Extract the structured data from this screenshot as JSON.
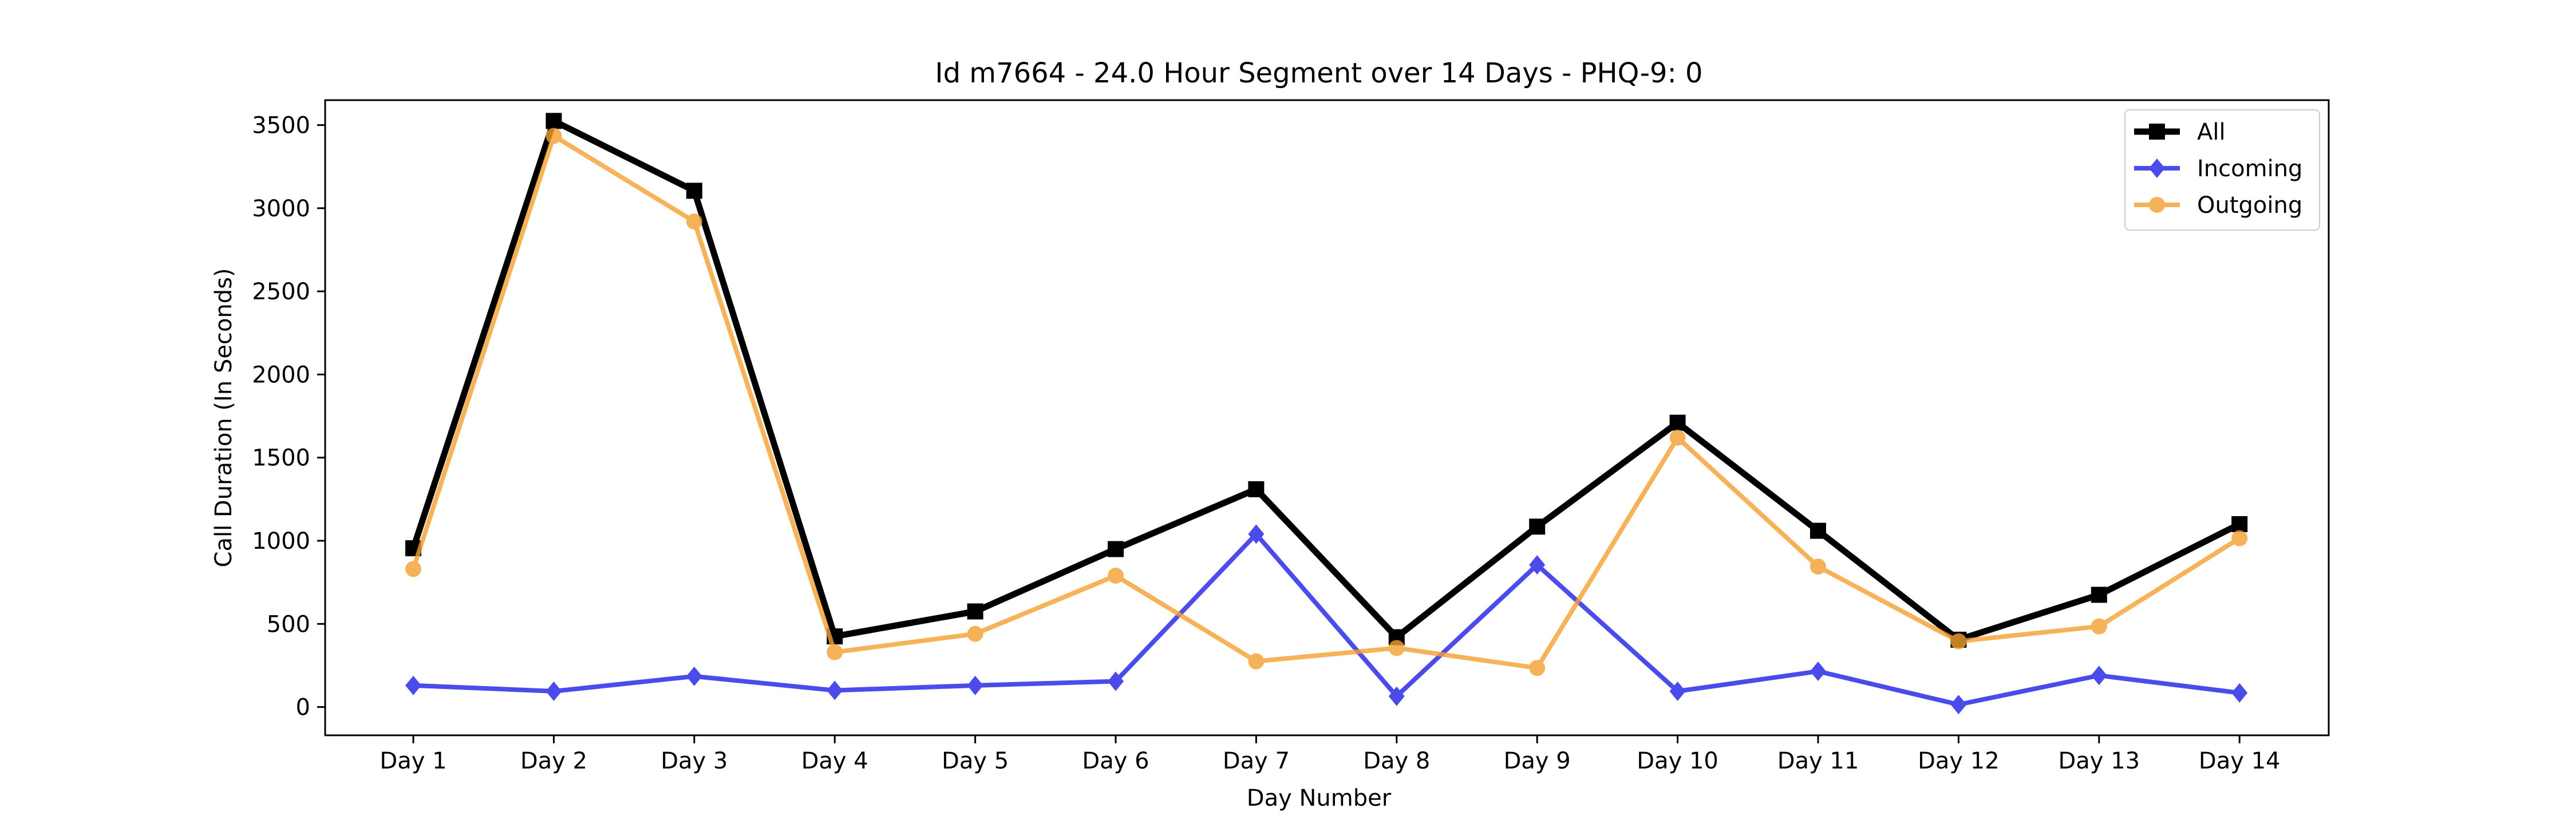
{
  "chart_data": {
    "type": "line",
    "title": "Id m7664 - 24.0 Hour Segment over 14 Days - PHQ-9: 0",
    "xlabel": "Day Number",
    "ylabel": "Call Duration (In Seconds)",
    "categories": [
      "Day 1",
      "Day 2",
      "Day 3",
      "Day 4",
      "Day 5",
      "Day 6",
      "Day 7",
      "Day 8",
      "Day 9",
      "Day 10",
      "Day 11",
      "Day 12",
      "Day 13",
      "Day 14"
    ],
    "yticks": [
      0,
      500,
      1000,
      1500,
      2000,
      2500,
      3000,
      3500
    ],
    "ylim": [
      -170,
      3650
    ],
    "grid": false,
    "legend_position": "top-right",
    "series": [
      {
        "name": "All",
        "color": "#000000",
        "marker": "square",
        "values": [
          955,
          3525,
          3105,
          425,
          575,
          950,
          1310,
          420,
          1085,
          1710,
          1060,
          405,
          675,
          1100
        ]
      },
      {
        "name": "Incoming",
        "color": "#1f1fe8",
        "marker": "diamond",
        "values": [
          130,
          95,
          185,
          100,
          130,
          155,
          1040,
          65,
          855,
          95,
          215,
          15,
          190,
          85
        ]
      },
      {
        "name": "Outgoing",
        "color": "#f5a030",
        "marker": "circle",
        "values": [
          830,
          3435,
          2920,
          330,
          440,
          790,
          275,
          355,
          235,
          1620,
          845,
          395,
          485,
          1015
        ]
      }
    ]
  }
}
